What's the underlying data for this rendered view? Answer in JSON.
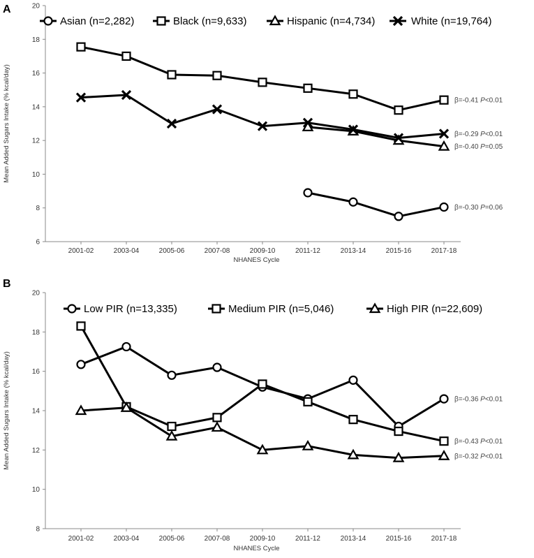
{
  "chart_data": [
    {
      "type": "line",
      "panel": "A",
      "categories": [
        "2001-02",
        "2003-04",
        "2005-06",
        "2007-08",
        "2009-10",
        "2011-12",
        "2013-14",
        "2015-16",
        "2017-18"
      ],
      "xlabel": "NHANES Cycle",
      "ylabel": "Mean Added Sugars Intake (% kcal/day)",
      "ylim": [
        6,
        20
      ],
      "yticks": [
        6,
        8,
        10,
        12,
        14,
        16,
        18,
        20
      ],
      "legend_position": "top",
      "series": [
        {
          "name": "Asian (n=2,282)",
          "marker": "circle",
          "values": [
            null,
            null,
            null,
            null,
            null,
            8.9,
            8.35,
            7.5,
            8.05
          ],
          "annotation": {
            "beta": "β=-0.30",
            "p": "P",
            "pval": "=0.06"
          }
        },
        {
          "name": "Black (n=9,633)",
          "marker": "square",
          "values": [
            17.55,
            17.0,
            15.9,
            15.85,
            15.45,
            15.1,
            14.75,
            13.8,
            14.4
          ],
          "annotation": {
            "beta": "β=-0.41",
            "p": "P",
            "pval": "<0.01"
          }
        },
        {
          "name": "Hispanic (n=4,734)",
          "marker": "triangle",
          "values": [
            null,
            null,
            null,
            null,
            null,
            12.8,
            12.55,
            12.0,
            11.65
          ],
          "annotation": {
            "beta": "β=-0.40",
            "p": "P",
            "pval": "=0.05"
          }
        },
        {
          "name": "White (n=19,764)",
          "marker": "x",
          "values": [
            14.55,
            14.7,
            13.0,
            13.85,
            12.85,
            13.05,
            12.65,
            12.15,
            12.4
          ],
          "annotation": {
            "beta": "β=-0.29",
            "p": "P",
            "pval": "<0.01"
          }
        }
      ]
    },
    {
      "type": "line",
      "panel": "B",
      "categories": [
        "2001-02",
        "2003-04",
        "2005-06",
        "2007-08",
        "2009-10",
        "2011-12",
        "2013-14",
        "2015-16",
        "2017-18"
      ],
      "xlabel": "NHANES Cycle",
      "ylabel": "Mean Added Sugars Intake (% kcal/day)",
      "ylim": [
        8,
        20
      ],
      "yticks": [
        8,
        10,
        12,
        14,
        16,
        18,
        20
      ],
      "legend_position": "top",
      "series": [
        {
          "name": "Low PIR (n=13,335)",
          "marker": "circle",
          "values": [
            16.35,
            17.25,
            15.8,
            16.2,
            15.2,
            14.6,
            15.55,
            13.2,
            14.6
          ],
          "annotation": {
            "beta": "β=-0.36",
            "p": "P",
            "pval": "<0.01"
          }
        },
        {
          "name": "Medium PIR (n=5,046)",
          "marker": "square",
          "values": [
            18.3,
            14.2,
            13.2,
            13.65,
            15.35,
            14.45,
            13.55,
            12.95,
            12.45
          ],
          "annotation": {
            "beta": "β=-0.43",
            "p": "P",
            "pval": "<0.01"
          }
        },
        {
          "name": "High PIR (n=22,609)",
          "marker": "triangle",
          "values": [
            14.0,
            14.15,
            12.7,
            13.15,
            12.0,
            12.2,
            11.75,
            11.6,
            11.7
          ],
          "annotation": {
            "beta": "β=-0.32",
            "p": "P",
            "pval": "<0.01"
          }
        }
      ]
    }
  ]
}
